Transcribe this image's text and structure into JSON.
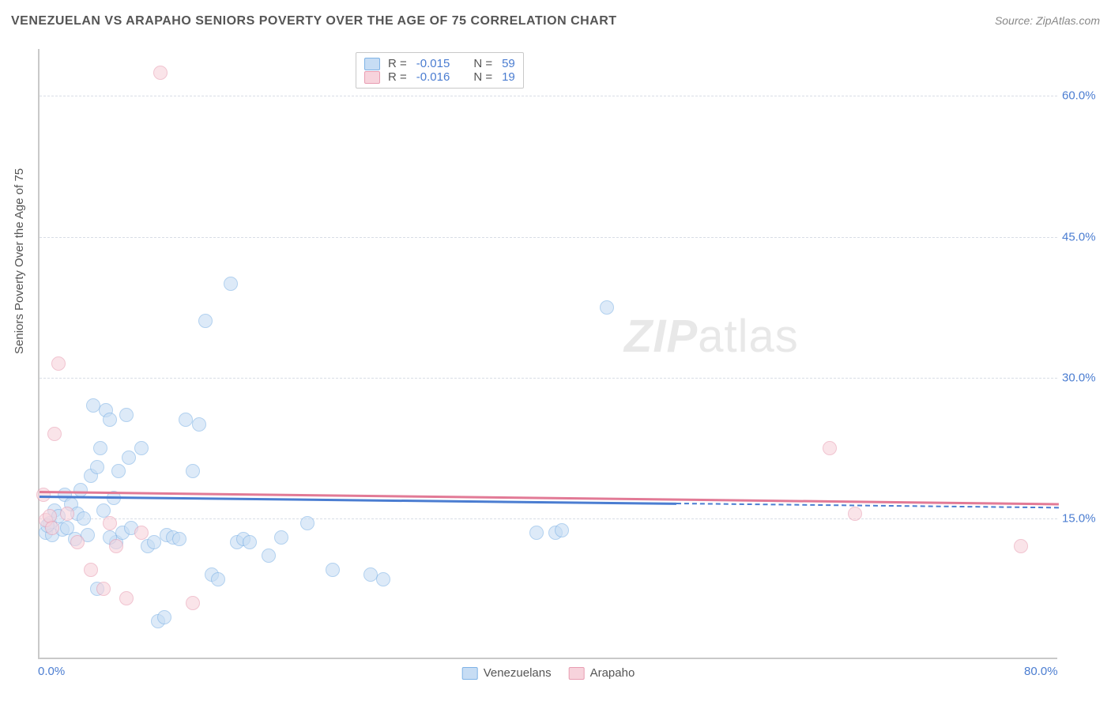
{
  "title": "VENEZUELAN VS ARAPAHO SENIORS POVERTY OVER THE AGE OF 75 CORRELATION CHART",
  "source_label": "Source: ZipAtlas.com",
  "y_axis_title": "Seniors Poverty Over the Age of 75",
  "chart": {
    "type": "scatter",
    "xlim": [
      0,
      80
    ],
    "ylim": [
      0,
      65
    ],
    "x_ticks": [
      {
        "v": 0,
        "label": "0.0%"
      },
      {
        "v": 80,
        "label": "80.0%"
      }
    ],
    "y_ticks": [
      {
        "v": 15,
        "label": "15.0%"
      },
      {
        "v": 30,
        "label": "30.0%"
      },
      {
        "v": 45,
        "label": "45.0%"
      },
      {
        "v": 60,
        "label": "60.0%"
      }
    ],
    "grid_color": "#d8dde6",
    "axis_color": "#c9c9c9",
    "background_color": "#ffffff",
    "label_color": "#4b7dd1",
    "text_color": "#555555",
    "watermark": {
      "text_bold": "ZIP",
      "text_rest": "atlas",
      "color": "#e8e8e8"
    }
  },
  "series": [
    {
      "name": "Venezuelans",
      "fill": "#c7ddf4",
      "stroke": "#7fb3e6",
      "trend_color": "#4b7dd1",
      "R": "-0.015",
      "N": "59",
      "trend": {
        "y_at_x0": 17.4,
        "y_at_xmax": 16.2,
        "solid_until_x": 50
      },
      "points": [
        [
          0.5,
          13.5
        ],
        [
          0.8,
          14.5
        ],
        [
          1,
          13.2
        ],
        [
          1.2,
          15.8
        ],
        [
          0.6,
          14.2
        ],
        [
          1.5,
          15.2
        ],
        [
          1.8,
          13.8
        ],
        [
          2,
          17.5
        ],
        [
          2.2,
          14.0
        ],
        [
          2.5,
          16.5
        ],
        [
          2.8,
          12.8
        ],
        [
          3,
          15.5
        ],
        [
          3.2,
          18.0
        ],
        [
          3.5,
          15.0
        ],
        [
          3.8,
          13.2
        ],
        [
          4,
          19.5
        ],
        [
          4.2,
          27.0
        ],
        [
          4.5,
          20.5
        ],
        [
          4.8,
          22.5
        ],
        [
          5,
          15.8
        ],
        [
          5.2,
          26.5
        ],
        [
          5.5,
          25.5
        ],
        [
          5.8,
          17.2
        ],
        [
          6,
          12.5
        ],
        [
          6.2,
          20.0
        ],
        [
          6.5,
          13.5
        ],
        [
          6.8,
          26.0
        ],
        [
          7,
          21.5
        ],
        [
          7.2,
          14.0
        ],
        [
          8,
          22.5
        ],
        [
          8.5,
          12.0
        ],
        [
          9,
          12.5
        ],
        [
          9.3,
          4.0
        ],
        [
          9.8,
          4.5
        ],
        [
          10,
          13.2
        ],
        [
          10.5,
          13.0
        ],
        [
          11,
          12.8
        ],
        [
          11.5,
          25.5
        ],
        [
          12,
          20.0
        ],
        [
          12.5,
          25.0
        ],
        [
          13,
          36.0
        ],
        [
          13.5,
          9.0
        ],
        [
          14,
          8.5
        ],
        [
          15,
          40.0
        ],
        [
          15.5,
          12.5
        ],
        [
          16,
          12.8
        ],
        [
          16.5,
          12.5
        ],
        [
          18,
          11.0
        ],
        [
          19,
          13.0
        ],
        [
          21,
          14.5
        ],
        [
          23,
          9.5
        ],
        [
          26,
          9.0
        ],
        [
          27,
          8.5
        ],
        [
          39,
          13.5
        ],
        [
          40.5,
          13.5
        ],
        [
          41,
          13.7
        ],
        [
          44.5,
          37.5
        ],
        [
          4.5,
          7.5
        ],
        [
          5.5,
          13.0
        ]
      ]
    },
    {
      "name": "Arapaho",
      "fill": "#f7d3dc",
      "stroke": "#e89db2",
      "trend_color": "#e27a96",
      "R": "-0.016",
      "N": "19",
      "trend": {
        "y_at_x0": 17.9,
        "y_at_xmax": 16.6,
        "solid_until_x": 80
      },
      "points": [
        [
          0.3,
          17.5
        ],
        [
          0.5,
          14.8
        ],
        [
          0.8,
          15.2
        ],
        [
          1,
          14.0
        ],
        [
          1.2,
          24.0
        ],
        [
          1.5,
          31.5
        ],
        [
          2.2,
          15.5
        ],
        [
          3,
          12.5
        ],
        [
          4,
          9.5
        ],
        [
          5,
          7.5
        ],
        [
          5.5,
          14.5
        ],
        [
          6,
          12.0
        ],
        [
          6.8,
          6.5
        ],
        [
          8,
          13.5
        ],
        [
          9.5,
          62.5
        ],
        [
          12,
          6.0
        ],
        [
          62,
          22.5
        ],
        [
          64,
          15.5
        ],
        [
          77,
          12.0
        ]
      ]
    }
  ],
  "legend_bottom": [
    {
      "label": "Venezuelans",
      "series": 0
    },
    {
      "label": "Arapaho",
      "series": 1
    }
  ]
}
